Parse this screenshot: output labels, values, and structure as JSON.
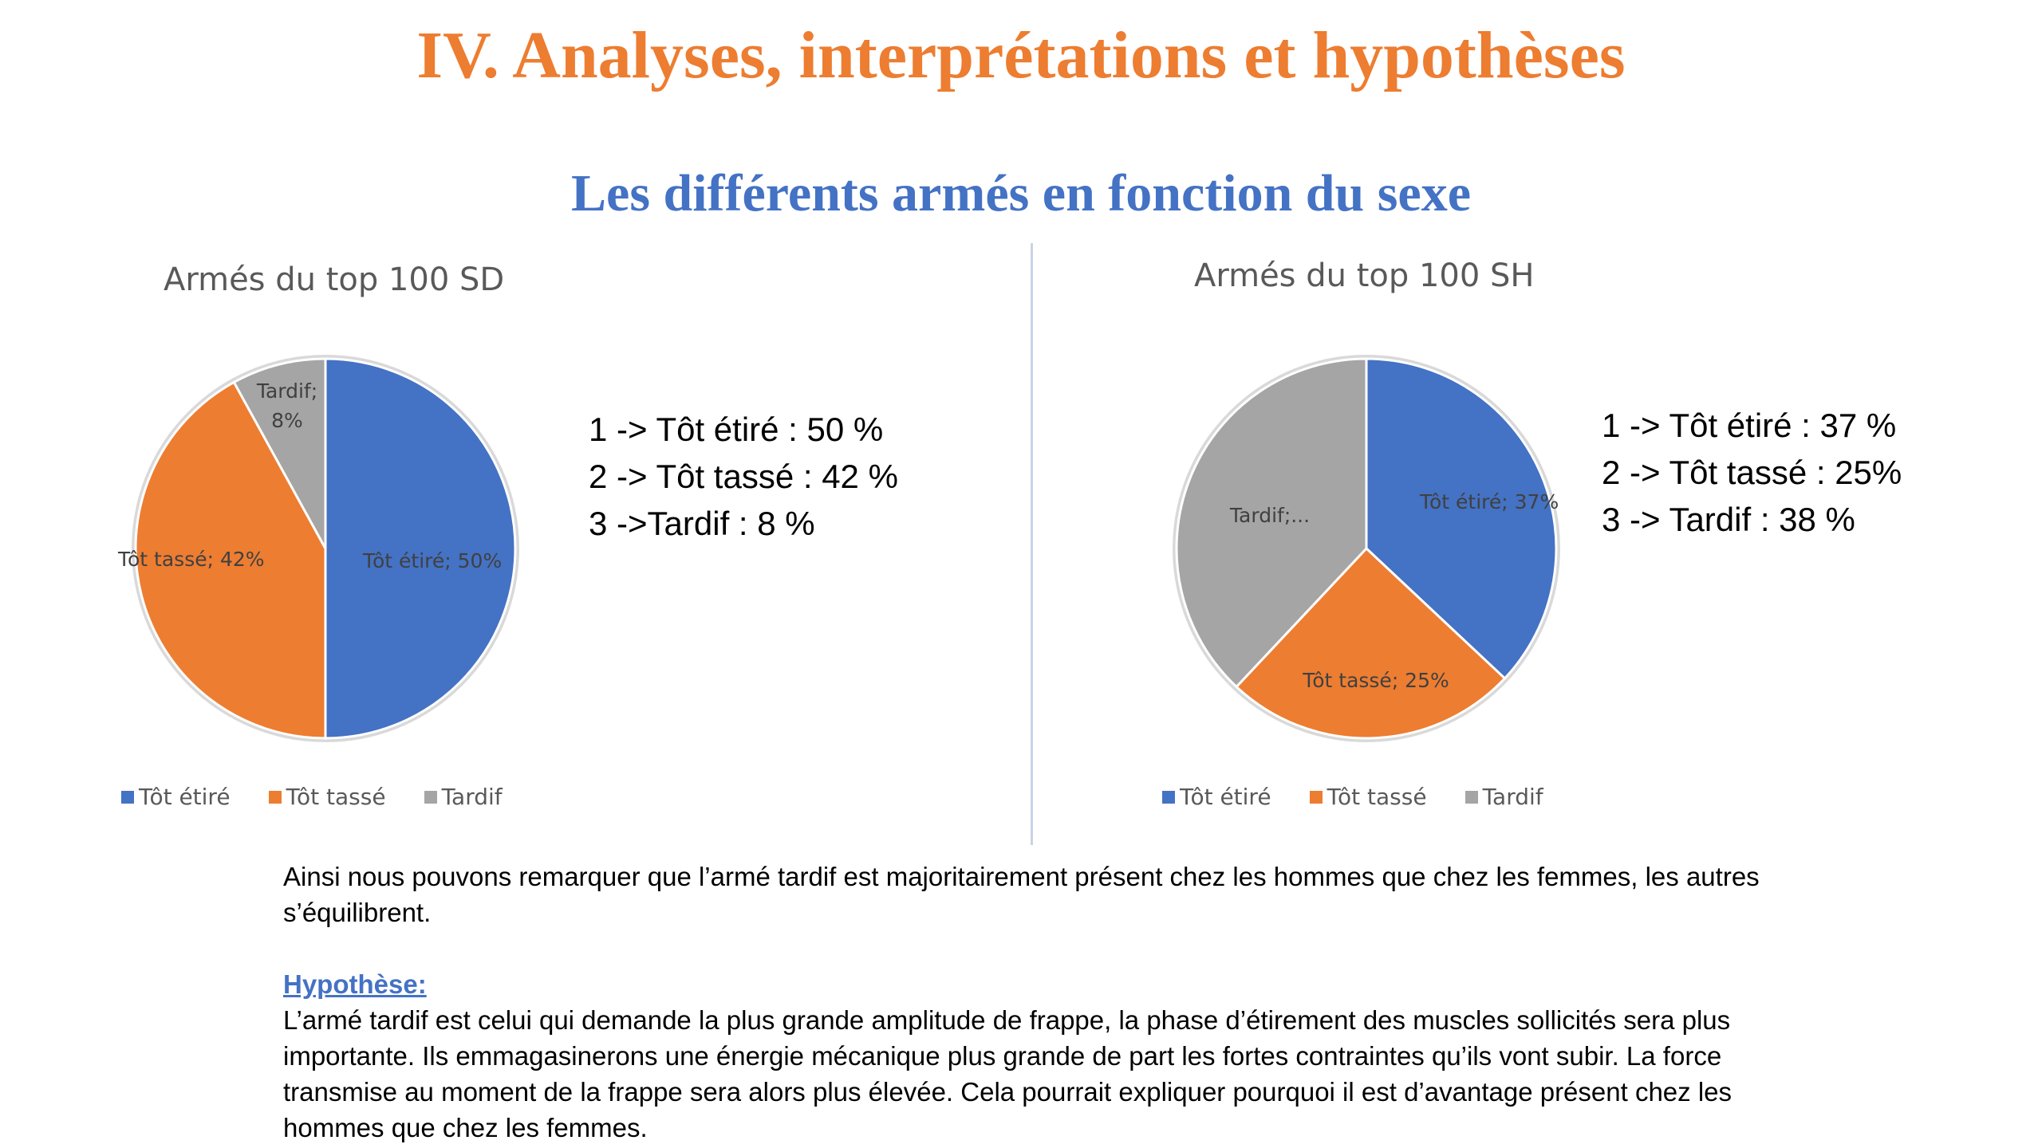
{
  "title": "IV. Analyses, interprétations et hypothèses",
  "subtitle": "Les différents armés en fonction du sexe",
  "chart_data": [
    {
      "type": "pie",
      "title": "Armés du top 100 SD",
      "categories": [
        "Tôt étiré",
        "Tôt tassé",
        "Tardif"
      ],
      "values": [
        50,
        42,
        8
      ],
      "colors": [
        "#4472C4",
        "#ED7D31",
        "#A5A5A5"
      ],
      "slice_labels": [
        "Tôt étiré; 50%",
        "Tôt tassé; 42%",
        "Tardif; 8%"
      ],
      "legend": [
        "Tôt étiré",
        "Tôt tassé",
        "Tardif"
      ],
      "legend_position": "bottom"
    },
    {
      "type": "pie",
      "title": "Armés du top 100 SH",
      "categories": [
        "Tôt étiré",
        "Tôt tassé",
        "Tardif"
      ],
      "values": [
        37,
        25,
        38
      ],
      "colors": [
        "#4472C4",
        "#ED7D31",
        "#A5A5A5"
      ],
      "slice_labels": [
        "Tôt étiré; 37%",
        "Tôt tassé; 25%",
        "Tardif;..."
      ],
      "legend": [
        "Tôt étiré",
        "Tôt tassé",
        "Tardif"
      ],
      "legend_position": "bottom"
    }
  ],
  "summary_left": [
    "1 -> Tôt étiré : 50 %",
    "2 -> Tôt tassé : 42 %",
    "3 ->Tardif : 8 %"
  ],
  "summary_right": [
    "1 -> Tôt étiré : 37 %",
    "2 -> Tôt tassé : 25%",
    "3 -> Tardif : 38 %"
  ],
  "observation": "Ainsi nous pouvons remarquer que l’armé tardif est majoritairement présent chez les hommes que chez les femmes, les autres s’équilibrent.",
  "hypothesis_heading": "Hypothèse:",
  "hypothesis_text": "L’armé tardif est celui qui demande la plus grande amplitude de frappe, la phase d’étirement des muscles sollicités sera plus importante. Ils emmagasinerons une énergie mécanique plus grande de part les fortes contraintes qu’ils vont subir. La force transmise au moment de la frappe sera alors plus élevée. Cela pourrait expliquer pourquoi il est d’avantage présent chez les hommes que chez les femmes."
}
